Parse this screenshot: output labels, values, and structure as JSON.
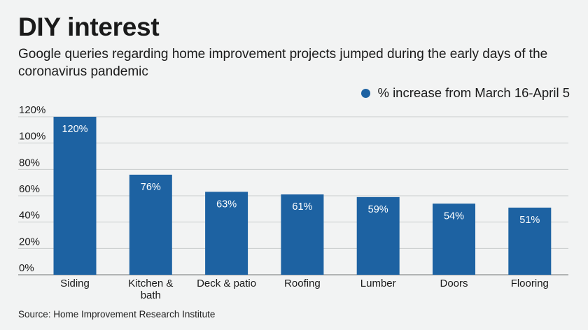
{
  "title": "DIY interest",
  "subtitle": "Google queries regarding home improvement projects jumped during the early days of the coronavirus pandemic",
  "source": "Source: Home Improvement Research Institute",
  "colors": {
    "bar": "#1d62a2",
    "gridline": "#c9cccc",
    "background": "#f2f3f3",
    "label_on_bar": "#ffffff"
  },
  "chart_data": {
    "type": "bar",
    "categories": [
      "Siding",
      "Kitchen & bath",
      "Deck & patio",
      "Roofing",
      "Lumber",
      "Doors",
      "Flooring"
    ],
    "category_label_lines": [
      [
        "Siding"
      ],
      [
        "Kitchen &",
        "bath"
      ],
      [
        "Deck & patio"
      ],
      [
        "Roofing"
      ],
      [
        "Lumber"
      ],
      [
        "Doors"
      ],
      [
        "Flooring"
      ]
    ],
    "series": [
      {
        "name": "% increase from March 16-April 5",
        "values": [
          120,
          76,
          63,
          61,
          59,
          54,
          51
        ]
      }
    ],
    "data_labels": [
      "120%",
      "76%",
      "63%",
      "61%",
      "59%",
      "54%",
      "51%"
    ],
    "ylim": [
      0,
      120
    ],
    "yticks": [
      0,
      20,
      40,
      60,
      80,
      100,
      120
    ],
    "ytick_labels": [
      "0%",
      "20%",
      "40%",
      "60%",
      "80%",
      "100%",
      "120%"
    ],
    "xlabel": "",
    "ylabel": "",
    "grid": true,
    "legend_position": "top-right"
  }
}
